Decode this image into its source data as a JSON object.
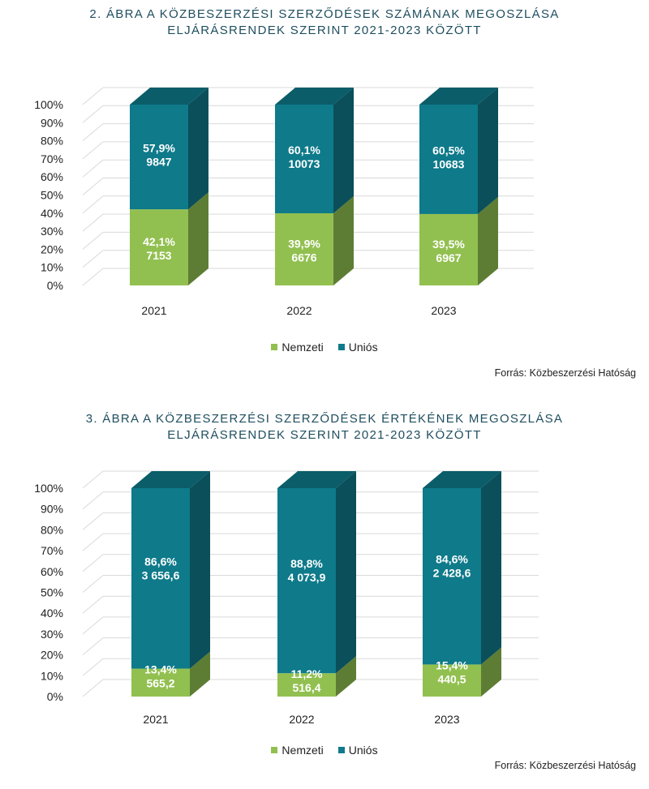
{
  "colors": {
    "nemzeti_front": "#92c050",
    "nemzeti_side": "#5e7d34",
    "nemzeti_top": "#7aa346",
    "unios_front": "#0e7a8a",
    "unios_side": "#0a4f5a",
    "unios_top": "#0b5d69",
    "grid": "#d9d9d9",
    "title": "#1f4e5f"
  },
  "charts": [
    {
      "title_line1": "2. ÁBRA   A KÖZBESZERZÉSI SZERZŐDÉSEK SZÁMÁNAK MEGOSZLÁSA",
      "title_line2": "ELJÁRÁSRENDEK SZERINT 2021-2023 KÖZÖTT",
      "legend": [
        "Nemzeti",
        "Uniós"
      ],
      "source": "Forrás: Közbeszerzési Hatóság"
    },
    {
      "title_line1": "3. ÁBRA   A KÖZBESZERZÉSI SZERZŐDÉSEK ÉRTÉKÉNEK MEGOSZLÁSA",
      "title_line2": "ELJÁRÁSRENDEK SZERINT 2021-2023 KÖZÖTT",
      "legend": [
        "Nemzeti",
        "Uniós"
      ],
      "source": "Forrás: Közbeszerzési Hatóság"
    }
  ],
  "chart_data": [
    {
      "type": "bar",
      "stacked": "100%",
      "style": "3d-column",
      "title": "2. ÁBRA A KÖZBESZERZÉSI SZERZŐDÉSEK SZÁMÁNAK MEGOSZLÁSA ELJÁRÁSRENDEK SZERINT 2021-2023 KÖZÖTT",
      "categories": [
        "2021",
        "2022",
        "2023"
      ],
      "y_ticks": [
        "0%",
        "10%",
        "20%",
        "30%",
        "40%",
        "50%",
        "60%",
        "70%",
        "80%",
        "90%",
        "100%"
      ],
      "ylim": [
        0,
        100
      ],
      "grid": true,
      "legend_position": "bottom",
      "series": [
        {
          "name": "Nemzeti",
          "values": [
            42.1,
            39.9,
            39.5
          ],
          "labels_pct": [
            "42,1%",
            "39,9%",
            "39,5%"
          ],
          "labels_val": [
            "7153",
            "6676",
            "6967"
          ]
        },
        {
          "name": "Uniós",
          "values": [
            57.9,
            60.1,
            60.5
          ],
          "labels_pct": [
            "57,9%",
            "60,1%",
            "60,5%"
          ],
          "labels_val": [
            "9847",
            "10073",
            "10683"
          ]
        }
      ]
    },
    {
      "type": "bar",
      "stacked": "100%",
      "style": "3d-column",
      "title": "3. ÁBRA A KÖZBESZERZÉSI SZERZŐDÉSEK ÉRTÉKÉNEK MEGOSZLÁSA ELJÁRÁSRENDEK SZERINT 2021-2023 KÖZÖTT",
      "categories": [
        "2021",
        "2022",
        "2023"
      ],
      "y_ticks": [
        "0%",
        "10%",
        "20%",
        "30%",
        "40%",
        "50%",
        "60%",
        "70%",
        "80%",
        "90%",
        "100%"
      ],
      "ylim": [
        0,
        100
      ],
      "grid": true,
      "legend_position": "bottom",
      "series": [
        {
          "name": "Nemzeti",
          "values": [
            13.4,
            11.2,
            15.4
          ],
          "labels_pct": [
            "13,4%",
            "11,2%",
            "15,4%"
          ],
          "labels_val": [
            "565,2",
            "516,4",
            "440,5"
          ]
        },
        {
          "name": "Uniós",
          "values": [
            86.6,
            88.8,
            84.6
          ],
          "labels_pct": [
            "86,6%",
            "88,8%",
            "84,6%"
          ],
          "labels_val": [
            "3 656,6",
            "4 073,9",
            "2 428,6"
          ]
        }
      ]
    }
  ]
}
